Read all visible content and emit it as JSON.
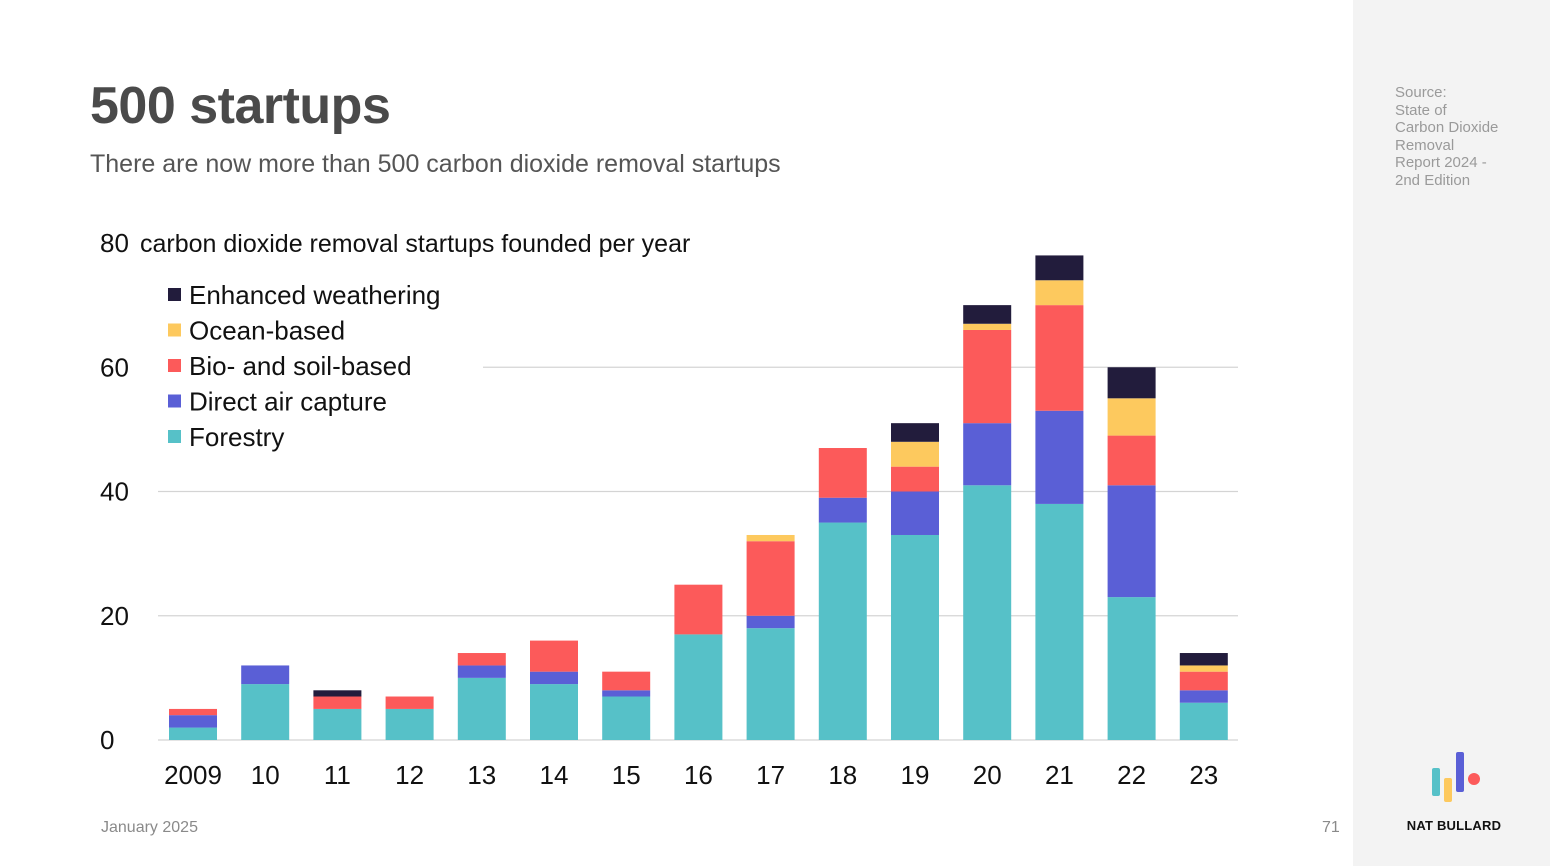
{
  "page": {
    "title": "500 startups",
    "subtitle": "There are now more than 500 carbon dioxide removal startups",
    "footer_date": "January 2025",
    "page_number": "71",
    "source_lines": [
      "Source:",
      "State of",
      "Carbon Dioxide",
      "Removal",
      "Report 2024 -",
      "2nd Edition"
    ],
    "brand": "NAT BULLARD"
  },
  "chart_data": {
    "type": "bar",
    "stacked": true,
    "title": "carbon dioxide removal startups founded per year",
    "xlabel": "",
    "ylabel": "",
    "ylim": [
      0,
      80
    ],
    "yticks": [
      0,
      20,
      40,
      60,
      80
    ],
    "grid": true,
    "legend_position": "top-left",
    "categories": [
      "2009",
      "10",
      "11",
      "12",
      "13",
      "14",
      "15",
      "16",
      "17",
      "18",
      "19",
      "20",
      "21",
      "22",
      "23"
    ],
    "series": [
      {
        "name": "Forestry",
        "color": "#56c1c8",
        "values": [
          2,
          9,
          5,
          5,
          10,
          9,
          7,
          17,
          18,
          35,
          33,
          41,
          38,
          23,
          6
        ]
      },
      {
        "name": "Direct air capture",
        "color": "#5a5fd6",
        "values": [
          2,
          3,
          0,
          0,
          2,
          2,
          1,
          0,
          2,
          4,
          7,
          10,
          15,
          18,
          2
        ]
      },
      {
        "name": "Bio- and soil-based",
        "color": "#fc5a5a",
        "values": [
          1,
          0,
          2,
          2,
          2,
          5,
          3,
          8,
          12,
          8,
          4,
          15,
          17,
          8,
          3
        ]
      },
      {
        "name": "Ocean-based",
        "color": "#fdc95e",
        "values": [
          0,
          0,
          0,
          0,
          0,
          0,
          0,
          0,
          1,
          0,
          4,
          1,
          4,
          6,
          1
        ]
      },
      {
        "name": "Enhanced weathering",
        "color": "#221c3c",
        "values": [
          0,
          0,
          1,
          0,
          0,
          0,
          0,
          0,
          0,
          0,
          3,
          3,
          4,
          5,
          2
        ]
      }
    ]
  },
  "colors": {
    "title": "#4a4a4a",
    "grid": "#d4d4d4",
    "sidebar": "#f3f3f3",
    "logo_teal": "#56c1c8",
    "logo_yellow": "#fdc95e",
    "logo_blue": "#5a5fd6",
    "logo_red": "#fc5a5a"
  }
}
